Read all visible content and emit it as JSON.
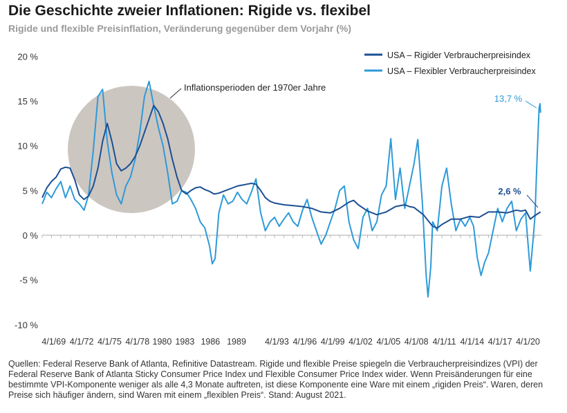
{
  "title": "Die Geschichte zweier Inflationen: Rigide vs. flexibel",
  "subtitle": "Rigide und flexible Preisinflation, Veränderung gegenüber dem Vorjahr (%)",
  "footer": "Quellen: Federal Reserve Bank of Atlanta, Refinitive Datastream. Rigide und flexible Preise spiegeln die Verbraucherpreisindizes (VPI) der Federal Reserve Bank of Atlanta Sticky Consumer Price Index und Flexible Consumer Price Index wider. Wenn Preisänderungen für eine bestimmte VPI-Komponente weniger als alle 4,3 Monate auftreten, ist diese Komponente eine Ware mit einem „rigiden Preis“. Waren, deren Preise sich häufiger ändern, sind Waren mit einem „flexiblen Preis“.  Stand: August 2021.",
  "chart_data": {
    "type": "line",
    "xlim": [
      1968,
      2021.7
    ],
    "ylim": [
      -10,
      20
    ],
    "yticks": [
      20,
      15,
      10,
      5,
      0,
      -5,
      -10
    ],
    "ytick_labels": [
      "20 %",
      "15 %",
      "10 %",
      "5 %",
      "0 %",
      "-5 %",
      "-10 %"
    ],
    "xticks": [
      1969.25,
      1972.25,
      1975.25,
      1978.25,
      1980.9,
      1983.35,
      1986.1,
      1988.9,
      1993.25,
      1996.25,
      1999.25,
      2002.25,
      2005.25,
      2008.25,
      2011.25,
      2014.25,
      2017.25,
      2020.25
    ],
    "xtick_labels": [
      "4/1/69",
      "4/1/72",
      "4/1/75",
      "4/1/78",
      "1980",
      "1983",
      "1986",
      "1989",
      "4/1/93",
      "4/1/96",
      "4/1/99",
      "4/1/02",
      "4/1/05",
      "4/1/08",
      "4/1/11",
      "4/1/14",
      "4/1/17",
      "4/1/20"
    ],
    "legend_position": "top-right",
    "series": [
      {
        "name": "USA – Rigider Verbraucherpreisindex",
        "color": "#1b4f93",
        "points": [
          [
            1968.0,
            4.2
          ],
          [
            1968.5,
            5.3
          ],
          [
            1969.0,
            6.0
          ],
          [
            1969.5,
            6.5
          ],
          [
            1970.0,
            7.4
          ],
          [
            1970.5,
            7.6
          ],
          [
            1971.0,
            7.5
          ],
          [
            1971.5,
            6.2
          ],
          [
            1972.0,
            4.5
          ],
          [
            1972.5,
            4.0
          ],
          [
            1973.0,
            4.4
          ],
          [
            1973.5,
            5.5
          ],
          [
            1974.0,
            7.5
          ],
          [
            1974.5,
            10.5
          ],
          [
            1975.0,
            12.5
          ],
          [
            1975.5,
            10.5
          ],
          [
            1976.0,
            8.0
          ],
          [
            1976.5,
            7.2
          ],
          [
            1977.0,
            7.5
          ],
          [
            1977.5,
            8.0
          ],
          [
            1978.0,
            8.8
          ],
          [
            1978.5,
            10.0
          ],
          [
            1979.0,
            11.5
          ],
          [
            1979.5,
            13.0
          ],
          [
            1980.0,
            14.5
          ],
          [
            1980.5,
            13.8
          ],
          [
            1981.0,
            12.5
          ],
          [
            1981.5,
            10.8
          ],
          [
            1982.0,
            8.5
          ],
          [
            1982.5,
            6.5
          ],
          [
            1983.0,
            5.0
          ],
          [
            1983.5,
            4.6
          ],
          [
            1984.0,
            5.0
          ],
          [
            1984.5,
            5.3
          ],
          [
            1985.0,
            5.4
          ],
          [
            1985.5,
            5.1
          ],
          [
            1986.0,
            4.9
          ],
          [
            1986.5,
            4.6
          ],
          [
            1987.0,
            4.7
          ],
          [
            1987.5,
            4.9
          ],
          [
            1988.0,
            5.1
          ],
          [
            1988.5,
            5.3
          ],
          [
            1989.0,
            5.5
          ],
          [
            1989.5,
            5.6
          ],
          [
            1990.0,
            5.7
          ],
          [
            1990.5,
            5.8
          ],
          [
            1991.0,
            5.7
          ],
          [
            1991.5,
            5.0
          ],
          [
            1992.0,
            4.2
          ],
          [
            1992.5,
            3.8
          ],
          [
            1993.0,
            3.6
          ],
          [
            1994.0,
            3.4
          ],
          [
            1995.0,
            3.3
          ],
          [
            1996.0,
            3.2
          ],
          [
            1997.0,
            3.0
          ],
          [
            1998.0,
            2.6
          ],
          [
            1999.0,
            2.5
          ],
          [
            2000.0,
            3.0
          ],
          [
            2001.0,
            3.7
          ],
          [
            2001.5,
            3.9
          ],
          [
            2002.0,
            3.4
          ],
          [
            2003.0,
            2.7
          ],
          [
            2004.0,
            2.3
          ],
          [
            2005.0,
            2.6
          ],
          [
            2006.0,
            3.2
          ],
          [
            2007.0,
            3.4
          ],
          [
            2007.5,
            3.2
          ],
          [
            2008.0,
            3.1
          ],
          [
            2009.0,
            2.3
          ],
          [
            2010.0,
            1.0
          ],
          [
            2010.5,
            0.8
          ],
          [
            2011.0,
            1.2
          ],
          [
            2012.0,
            1.8
          ],
          [
            2013.0,
            1.8
          ],
          [
            2014.0,
            2.1
          ],
          [
            2015.0,
            2.0
          ],
          [
            2016.0,
            2.6
          ],
          [
            2017.0,
            2.6
          ],
          [
            2018.0,
            2.5
          ],
          [
            2019.0,
            2.8
          ],
          [
            2019.5,
            2.7
          ],
          [
            2020.0,
            2.8
          ],
          [
            2020.5,
            1.8
          ],
          [
            2021.0,
            2.2
          ],
          [
            2021.6,
            2.6
          ]
        ]
      },
      {
        "name": "USA – Flexibler Verbraucherpreisindex",
        "color": "#2d9ad8",
        "points": [
          [
            1968.0,
            3.5
          ],
          [
            1968.5,
            4.8
          ],
          [
            1969.0,
            4.2
          ],
          [
            1969.5,
            5.2
          ],
          [
            1970.0,
            6.0
          ],
          [
            1970.5,
            4.2
          ],
          [
            1971.0,
            5.5
          ],
          [
            1971.5,
            4.0
          ],
          [
            1972.0,
            3.5
          ],
          [
            1972.5,
            2.8
          ],
          [
            1973.0,
            4.5
          ],
          [
            1973.5,
            9.5
          ],
          [
            1974.0,
            15.5
          ],
          [
            1974.5,
            16.3
          ],
          [
            1975.0,
            10.5
          ],
          [
            1975.5,
            7.0
          ],
          [
            1976.0,
            4.5
          ],
          [
            1976.5,
            3.5
          ],
          [
            1977.0,
            5.5
          ],
          [
            1977.5,
            6.5
          ],
          [
            1978.0,
            8.5
          ],
          [
            1978.5,
            11.5
          ],
          [
            1979.0,
            15.5
          ],
          [
            1979.5,
            17.2
          ],
          [
            1980.0,
            14.5
          ],
          [
            1980.5,
            12.0
          ],
          [
            1981.0,
            10.0
          ],
          [
            1981.5,
            7.0
          ],
          [
            1982.0,
            3.5
          ],
          [
            1982.5,
            3.8
          ],
          [
            1983.0,
            5.0
          ],
          [
            1983.5,
            4.8
          ],
          [
            1984.0,
            4.0
          ],
          [
            1984.5,
            3.0
          ],
          [
            1985.0,
            1.5
          ],
          [
            1985.5,
            0.8
          ],
          [
            1986.0,
            -1.2
          ],
          [
            1986.3,
            -3.2
          ],
          [
            1986.6,
            -2.6
          ],
          [
            1987.0,
            2.5
          ],
          [
            1987.5,
            4.5
          ],
          [
            1988.0,
            3.5
          ],
          [
            1988.5,
            3.8
          ],
          [
            1989.0,
            4.8
          ],
          [
            1989.5,
            4.0
          ],
          [
            1990.0,
            3.5
          ],
          [
            1990.5,
            4.8
          ],
          [
            1991.0,
            6.3
          ],
          [
            1991.5,
            2.5
          ],
          [
            1992.0,
            0.5
          ],
          [
            1992.5,
            1.5
          ],
          [
            1993.0,
            2.0
          ],
          [
            1993.5,
            1.0
          ],
          [
            1994.0,
            1.8
          ],
          [
            1994.5,
            2.5
          ],
          [
            1995.0,
            1.5
          ],
          [
            1995.5,
            1.0
          ],
          [
            1996.0,
            2.8
          ],
          [
            1996.5,
            4.0
          ],
          [
            1997.0,
            2.0
          ],
          [
            1997.5,
            0.5
          ],
          [
            1998.0,
            -1.0
          ],
          [
            1998.5,
            0.0
          ],
          [
            1999.0,
            1.5
          ],
          [
            1999.5,
            3.0
          ],
          [
            2000.0,
            5.0
          ],
          [
            2000.5,
            5.5
          ],
          [
            2001.0,
            1.5
          ],
          [
            2001.5,
            -0.5
          ],
          [
            2002.0,
            -1.5
          ],
          [
            2002.5,
            2.0
          ],
          [
            2003.0,
            3.0
          ],
          [
            2003.5,
            0.5
          ],
          [
            2004.0,
            1.5
          ],
          [
            2004.5,
            4.5
          ],
          [
            2005.0,
            5.5
          ],
          [
            2005.5,
            10.8
          ],
          [
            2006.0,
            4.0
          ],
          [
            2006.5,
            7.5
          ],
          [
            2007.0,
            3.0
          ],
          [
            2007.5,
            5.5
          ],
          [
            2008.0,
            8.0
          ],
          [
            2008.4,
            10.7
          ],
          [
            2008.9,
            3.5
          ],
          [
            2009.3,
            -4.5
          ],
          [
            2009.5,
            -6.9
          ],
          [
            2009.8,
            -3.5
          ],
          [
            2010.0,
            1.5
          ],
          [
            2010.5,
            0.5
          ],
          [
            2011.0,
            5.5
          ],
          [
            2011.5,
            7.5
          ],
          [
            2012.0,
            3.5
          ],
          [
            2012.5,
            0.5
          ],
          [
            2013.0,
            1.8
          ],
          [
            2013.5,
            1.0
          ],
          [
            2014.0,
            2.0
          ],
          [
            2014.4,
            1.0
          ],
          [
            2014.8,
            -2.5
          ],
          [
            2015.2,
            -4.5
          ],
          [
            2015.6,
            -3.0
          ],
          [
            2016.0,
            -2.0
          ],
          [
            2016.5,
            0.5
          ],
          [
            2017.0,
            3.0
          ],
          [
            2017.5,
            1.5
          ],
          [
            2018.0,
            3.0
          ],
          [
            2018.5,
            3.8
          ],
          [
            2019.0,
            0.5
          ],
          [
            2019.5,
            1.8
          ],
          [
            2020.0,
            2.5
          ],
          [
            2020.3,
            -1.5
          ],
          [
            2020.5,
            -4.0
          ],
          [
            2020.8,
            -0.5
          ],
          [
            2021.0,
            2.0
          ],
          [
            2021.25,
            9.0
          ],
          [
            2021.45,
            14.2
          ],
          [
            2021.55,
            14.7
          ],
          [
            2021.6,
            13.7
          ]
        ]
      }
    ],
    "annotations": [
      {
        "text": "Inflationsperioden der 1970er Jahre"
      },
      {
        "text": "13,7 %",
        "x": 2021.6,
        "y": 13.7
      },
      {
        "text": "2,6 %",
        "x": 2021.6,
        "y": 2.6
      }
    ]
  }
}
